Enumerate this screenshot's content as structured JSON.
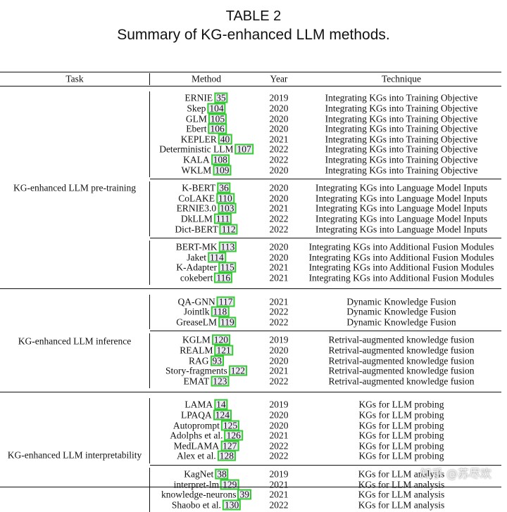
{
  "caption": {
    "label": "TABLE 2",
    "title": "Summary of KG-enhanced LLM methods."
  },
  "headers": {
    "task": "Task",
    "method": "Method",
    "year": "Year",
    "technique": "Technique"
  },
  "sections": [
    {
      "task": "KG-enhanced LLM pre-training",
      "groups": [
        [
          {
            "method": "ERNIE",
            "ref": "35",
            "year": "2019",
            "technique": "Integrating KGs into Training Objective"
          },
          {
            "method": "Skep",
            "ref": "104",
            "year": "2020",
            "technique": "Integrating KGs into Training Objective"
          },
          {
            "method": "GLM",
            "ref": "105",
            "year": "2020",
            "technique": "Integrating KGs into Training Objective"
          },
          {
            "method": "Ebert",
            "ref": "106",
            "year": "2020",
            "technique": "Integrating KGs into Training Objective"
          },
          {
            "method": "KEPLER",
            "ref": "40",
            "year": "2021",
            "technique": "Integrating KGs into Training Objective"
          },
          {
            "method": "Deterministic LLM",
            "ref": "107",
            "year": "2022",
            "technique": "Integrating KGs into Training Objective"
          },
          {
            "method": "KALA",
            "ref": "108",
            "year": "2022",
            "technique": "Integrating KGs into Training Objective"
          },
          {
            "method": "WKLM",
            "ref": "109",
            "year": "2020",
            "technique": "Integrating KGs into Training Objective"
          }
        ],
        [
          {
            "method": "K-BERT",
            "ref": "36",
            "year": "2020",
            "technique": "Integrating KGs into Language Model Inputs"
          },
          {
            "method": "CoLAKE",
            "ref": "110",
            "year": "2020",
            "technique": "Integrating KGs into Language Model Inputs"
          },
          {
            "method": "ERNIE3.0",
            "ref": "103",
            "year": "2021",
            "technique": "Integrating KGs into Language Model Inputs"
          },
          {
            "method": "DkLLM",
            "ref": "111",
            "year": "2022",
            "technique": "Integrating KGs into Language Model Inputs"
          },
          {
            "method": "Dict-BERT",
            "ref": "112",
            "year": "2022",
            "technique": "Integrating KGs into Language Model Inputs"
          }
        ],
        [
          {
            "method": "BERT-MK",
            "ref": "113",
            "year": "2020",
            "technique": "Integrating KGs into Additional Fusion Modules"
          },
          {
            "method": "Jaket",
            "ref": "114",
            "year": "2020",
            "technique": "Integrating KGs into Additional Fusion Modules"
          },
          {
            "method": "K-Adapter",
            "ref": "115",
            "year": "2021",
            "technique": "Integrating KGs into Additional Fusion Modules"
          },
          {
            "method": "cokebert",
            "ref": "116",
            "year": "2021",
            "technique": "Integrating KGs into Additional Fusion Modules"
          }
        ]
      ]
    },
    {
      "task": "KG-enhanced LLM inference",
      "groups": [
        [
          {
            "method": "QA-GNN",
            "ref": "117",
            "year": "2021",
            "technique": "Dynamic Knowledge Fusion"
          },
          {
            "method": "Jointlk",
            "ref": "118",
            "year": "2022",
            "technique": "Dynamic Knowledge Fusion"
          },
          {
            "method": "GreaseLM",
            "ref": "119",
            "year": "2022",
            "technique": "Dynamic Knowledge Fusion"
          }
        ],
        [
          {
            "method": "KGLM",
            "ref": "120",
            "year": "2019",
            "technique": "Retrival-augmented knowledge fusion"
          },
          {
            "method": "REALM",
            "ref": "121",
            "year": "2020",
            "technique": "Retrival-augmented knowledge fusion"
          },
          {
            "method": "RAG",
            "ref": "93",
            "year": "2020",
            "technique": "Retrival-augmented knowledge fusion"
          },
          {
            "method": "Story-fragments",
            "ref": "122",
            "year": "2021",
            "technique": "Retrival-augmented knowledge fusion"
          },
          {
            "method": "EMAT",
            "ref": "123",
            "year": "2022",
            "technique": "Retrival-augmented knowledge fusion"
          }
        ]
      ]
    },
    {
      "task": "KG-enhanced LLM interpretability",
      "groups": [
        [
          {
            "method": "LAMA",
            "ref": "14",
            "year": "2019",
            "technique": "KGs for LLM probing"
          },
          {
            "method": "LPAQA",
            "ref": "124",
            "year": "2020",
            "technique": "KGs for LLM probing"
          },
          {
            "method": "Autoprompt",
            "ref": "125",
            "year": "2020",
            "technique": "KGs for LLM probing"
          },
          {
            "method": "Adolphs et al.",
            "ref": "126",
            "year": "2021",
            "technique": "KGs for LLM probing"
          },
          {
            "method": "MedLAMA",
            "ref": "127",
            "year": "2022",
            "technique": "KGs for LLM probing"
          },
          {
            "method": "Alex et al.",
            "ref": "128",
            "year": "2022",
            "technique": "KGs for LLM probing"
          }
        ],
        [
          {
            "method": "KagNet",
            "ref": "38",
            "year": "2019",
            "technique": "KGs for LLM analysis"
          },
          {
            "method": "interpret-lm",
            "ref": "129",
            "year": "2021",
            "technique": "KGs for LLM analysis"
          },
          {
            "method": "knowledge-neurons",
            "ref": "39",
            "year": "2021",
            "technique": "KGs for LLM analysis"
          },
          {
            "method": "Shaobo et al.",
            "ref": "130",
            "year": "2022",
            "technique": "KGs for LLM analysis"
          }
        ]
      ]
    }
  ],
  "watermark": "知乎 @苏尽欢"
}
